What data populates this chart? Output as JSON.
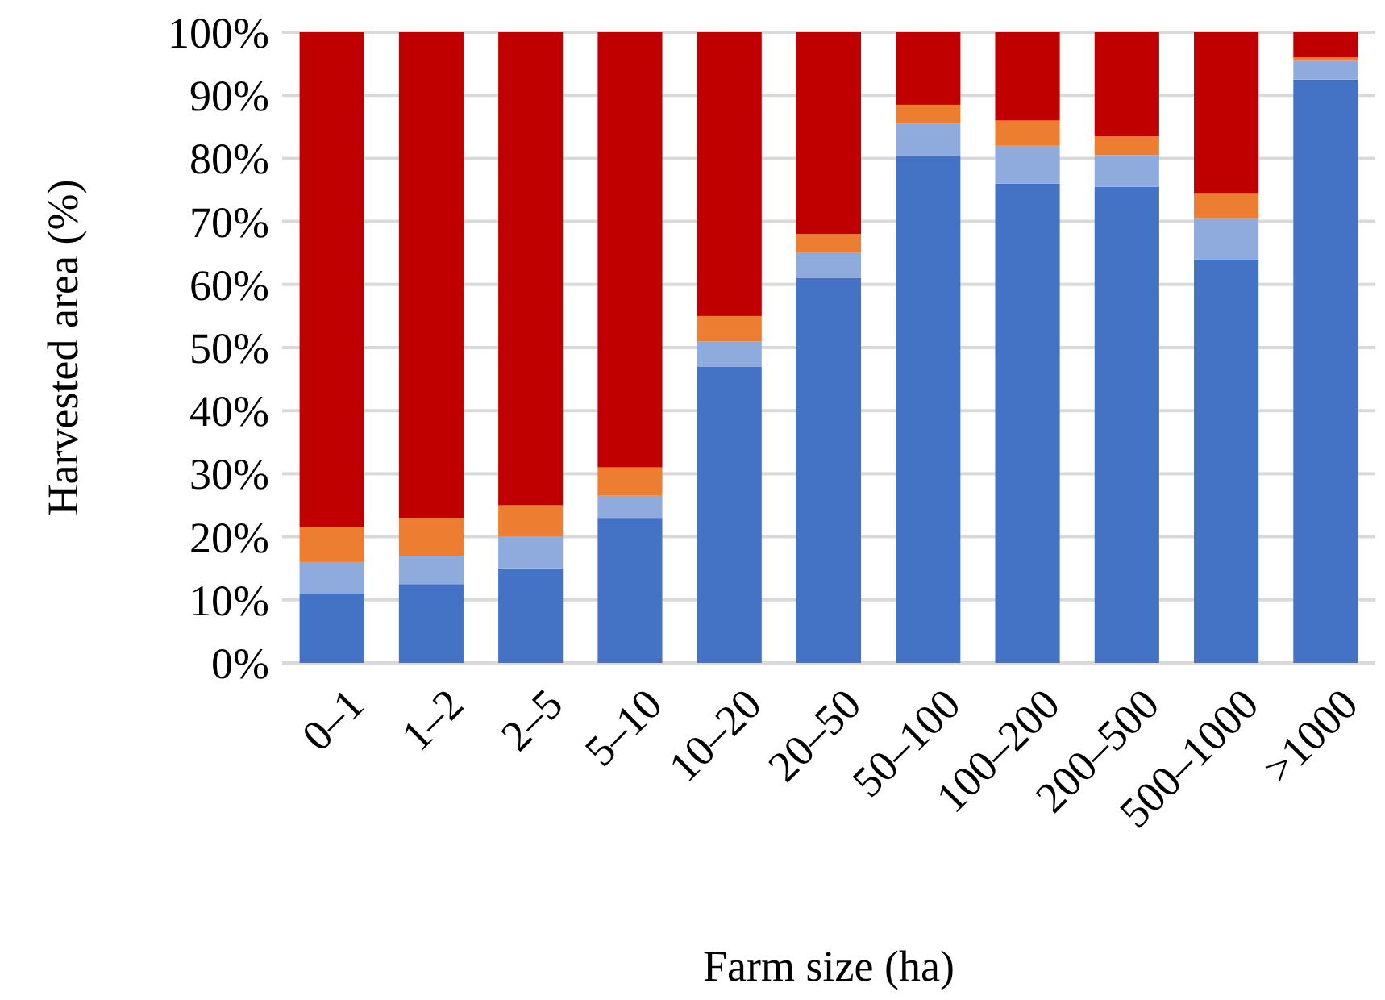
{
  "chart_data": {
    "type": "bar",
    "stacked": true,
    "xlabel": "Farm size (ha)",
    "ylabel": "Harvested area (%)",
    "categories": [
      "0–1",
      "1–2",
      "2–5",
      "5–10",
      "10–20",
      "20–50",
      "50–100",
      "100–200",
      "200–500",
      "500–1000",
      ">1000"
    ],
    "series": [
      {
        "color": "#4472c4",
        "values": [
          11,
          12.5,
          15,
          23,
          47,
          61,
          80.5,
          76,
          75.5,
          64,
          92.5
        ]
      },
      {
        "color": "#8faadc",
        "values": [
          5,
          4.5,
          5,
          3.5,
          4,
          4,
          5,
          6,
          5,
          6.5,
          3
        ]
      },
      {
        "color": "#ed7d31",
        "values": [
          5.5,
          6,
          5,
          4.5,
          4,
          3,
          3,
          4,
          3,
          4,
          0.5
        ]
      },
      {
        "color": "#c00000",
        "values": [
          78.5,
          77,
          75,
          69,
          45,
          32,
          11.5,
          14,
          16.5,
          25.5,
          4
        ]
      }
    ],
    "ylim": [
      0,
      100
    ],
    "yticks": [
      {
        "value": 0,
        "label": "0%"
      },
      {
        "value": 10,
        "label": "10%"
      },
      {
        "value": 20,
        "label": "20%"
      },
      {
        "value": 30,
        "label": "30%"
      },
      {
        "value": 40,
        "label": "40%"
      },
      {
        "value": 50,
        "label": "50%"
      },
      {
        "value": 60,
        "label": "60%"
      },
      {
        "value": 70,
        "label": "70%"
      },
      {
        "value": 80,
        "label": "80%"
      },
      {
        "value": 90,
        "label": "90%"
      },
      {
        "value": 100,
        "label": "100%"
      }
    ],
    "grid": "y"
  }
}
